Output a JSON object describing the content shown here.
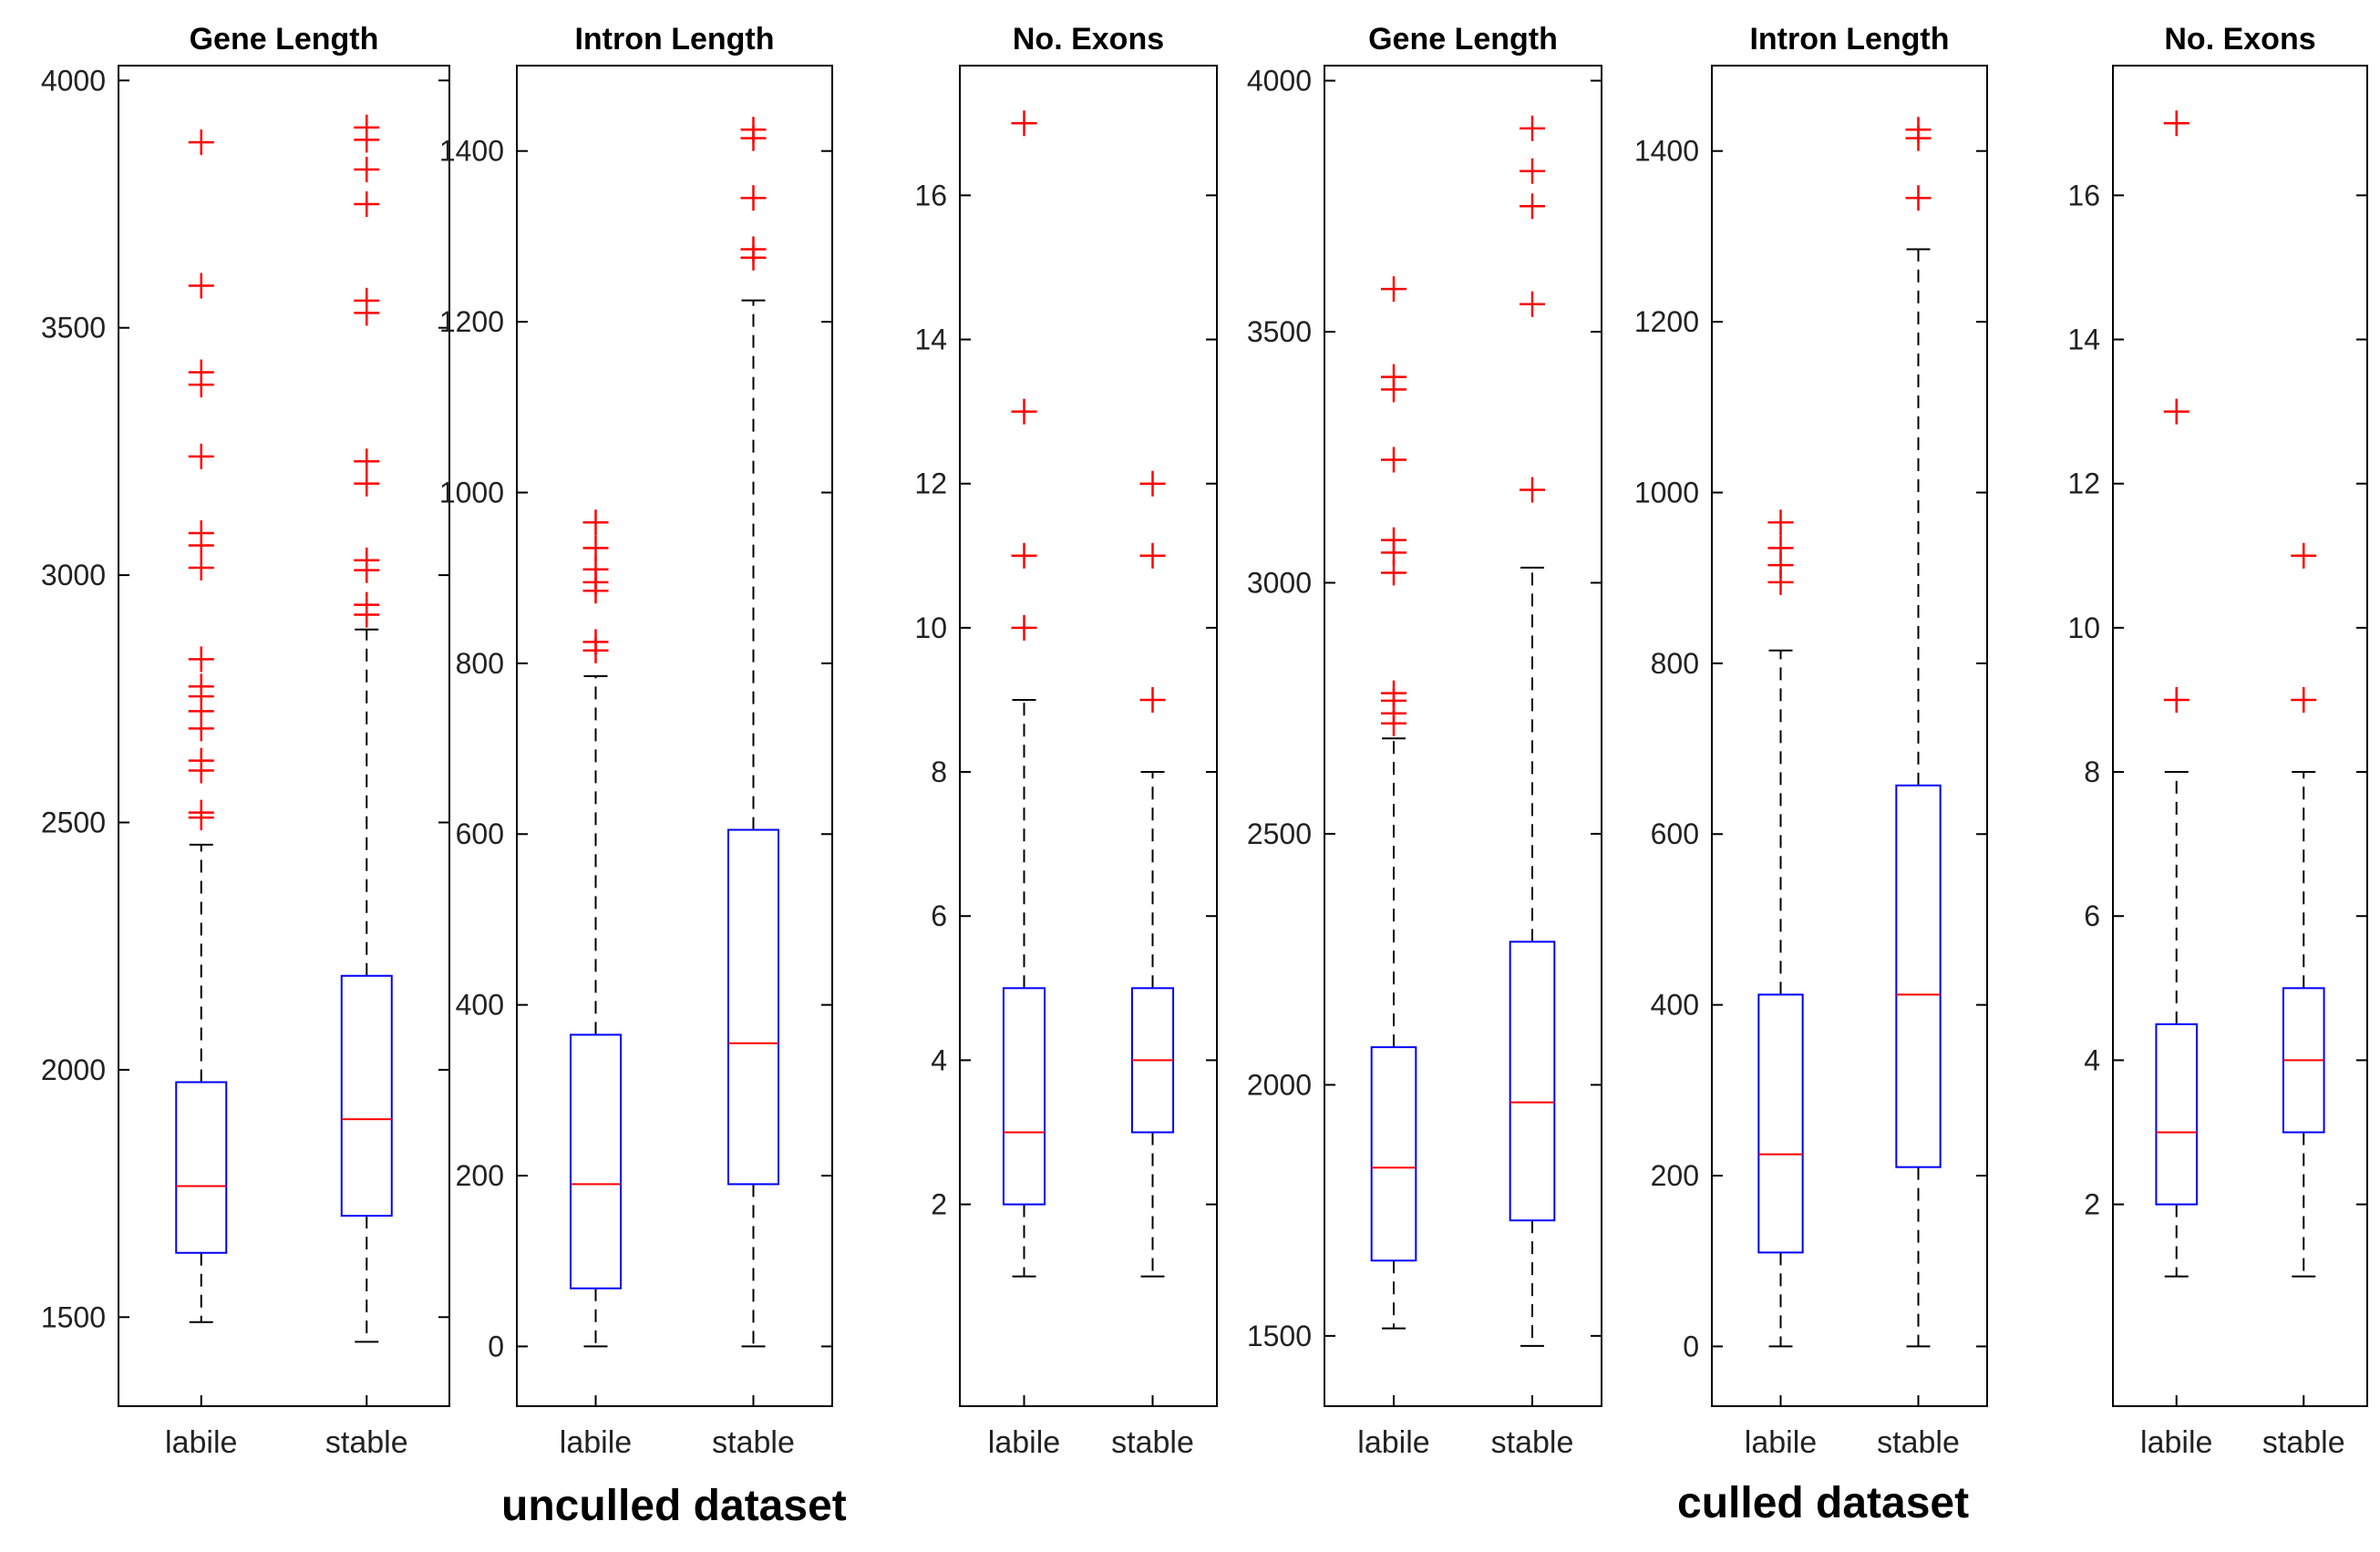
{
  "colors": {
    "box": "#0000ff",
    "median": "#ff0000",
    "outlier": "#ff0000",
    "whisker": "#000000",
    "axis": "#000000"
  },
  "captions": {
    "left": "unculled dataset",
    "right": "culled dataset"
  },
  "chart_data": [
    {
      "type": "box",
      "title": "Gene Length",
      "categories": [
        "labile",
        "stable"
      ],
      "ylim": [
        1320,
        4030
      ],
      "yticks": [
        1500,
        2000,
        2500,
        3000,
        3500,
        4000
      ],
      "boxes": [
        {
          "q1": 1630,
          "median": 1765,
          "q3": 1975,
          "whisker_low": 1490,
          "whisker_high": 2455,
          "outliers": [
            2510,
            2520,
            2605,
            2625,
            2690,
            2725,
            2755,
            2775,
            2830,
            3015,
            3060,
            3085,
            3240,
            3385,
            3410,
            3585,
            3875
          ]
        },
        {
          "q1": 1705,
          "median": 1900,
          "q3": 2190,
          "whisker_low": 1450,
          "whisker_high": 2890,
          "outliers": [
            2920,
            2940,
            3010,
            3030,
            3185,
            3230,
            3530,
            3555,
            3750,
            3820,
            3880,
            3905
          ]
        }
      ]
    },
    {
      "type": "box",
      "title": "Intron Length",
      "categories": [
        "labile",
        "stable"
      ],
      "ylim": [
        -70,
        1500
      ],
      "yticks": [
        0,
        200,
        400,
        600,
        800,
        1000,
        1200,
        1400
      ],
      "boxes": [
        {
          "q1": 68,
          "median": 190,
          "q3": 365,
          "whisker_low": 0,
          "whisker_high": 785,
          "outliers": [
            815,
            825,
            885,
            895,
            910,
            935,
            965
          ]
        },
        {
          "q1": 190,
          "median": 355,
          "q3": 605,
          "whisker_low": 0,
          "whisker_high": 1225,
          "outliers": [
            1275,
            1285,
            1345,
            1415,
            1425
          ]
        }
      ]
    },
    {
      "type": "box",
      "title": "No. Exons",
      "categories": [
        "labile",
        "stable"
      ],
      "ylim": [
        -0.8,
        17.8
      ],
      "yticks": [
        2,
        4,
        6,
        8,
        10,
        12,
        14,
        16
      ],
      "boxes": [
        {
          "q1": 2,
          "median": 3,
          "q3": 5,
          "whisker_low": 1,
          "whisker_high": 9,
          "outliers": [
            10,
            11,
            13,
            17
          ]
        },
        {
          "q1": 3,
          "median": 4,
          "q3": 5,
          "whisker_low": 1,
          "whisker_high": 8,
          "outliers": [
            9,
            11,
            12
          ]
        }
      ]
    },
    {
      "type": "box",
      "title": "Gene Length",
      "categories": [
        "labile",
        "stable"
      ],
      "ylim": [
        1360,
        4030
      ],
      "yticks": [
        1500,
        2000,
        2500,
        3000,
        3500,
        4000
      ],
      "boxes": [
        {
          "q1": 1650,
          "median": 1835,
          "q3": 2075,
          "whisker_low": 1515,
          "whisker_high": 2690,
          "outliers": [
            2720,
            2740,
            2765,
            2780,
            3020,
            3060,
            3085,
            3245,
            3385,
            3410,
            3585
          ]
        },
        {
          "q1": 1730,
          "median": 1965,
          "q3": 2285,
          "whisker_low": 1480,
          "whisker_high": 3030,
          "outliers": [
            3185,
            3555,
            3750,
            3820,
            3905
          ]
        }
      ]
    },
    {
      "type": "box",
      "title": "Intron Length",
      "categories": [
        "labile",
        "stable"
      ],
      "ylim": [
        -70,
        1500
      ],
      "yticks": [
        0,
        200,
        400,
        600,
        800,
        1000,
        1200,
        1400
      ],
      "boxes": [
        {
          "q1": 110,
          "median": 225,
          "q3": 412,
          "whisker_low": 0,
          "whisker_high": 815,
          "outliers": [
            895,
            915,
            935,
            965
          ]
        },
        {
          "q1": 210,
          "median": 412,
          "q3": 657,
          "whisker_low": 0,
          "whisker_high": 1285,
          "outliers": [
            1345,
            1415,
            1425
          ]
        }
      ]
    },
    {
      "type": "box",
      "title": "No. Exons",
      "categories": [
        "labile",
        "stable"
      ],
      "ylim": [
        -0.8,
        17.8
      ],
      "yticks": [
        2,
        4,
        6,
        8,
        10,
        12,
        14,
        16
      ],
      "boxes": [
        {
          "q1": 2,
          "median": 3,
          "q3": 4.5,
          "whisker_low": 1,
          "whisker_high": 8,
          "outliers": [
            9,
            13,
            17
          ]
        },
        {
          "q1": 3,
          "median": 4,
          "q3": 5,
          "whisker_low": 1,
          "whisker_high": 8,
          "outliers": [
            9,
            11
          ]
        }
      ]
    }
  ]
}
